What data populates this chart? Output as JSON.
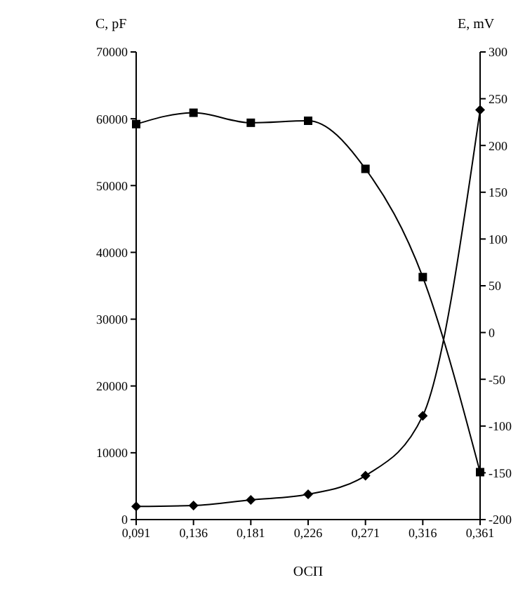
{
  "chart_data": {
    "type": "line",
    "xlabel": "ОСП",
    "ylabel": "C, pF",
    "y2label": "E, mV",
    "categories": [
      "0,091",
      "0,136",
      "0,181",
      "0,226",
      "0,271",
      "0,316",
      "0,361"
    ],
    "series": [
      {
        "color": "#000000",
        "marker": "square",
        "values": [
          59200,
          60900,
          59400,
          59700,
          52500,
          36300,
          7100
        ]
      },
      {
        "color": "#000000",
        "marker": "diamond",
        "axis": "y2",
        "values": [
          -186,
          -185,
          -179,
          -173,
          -153,
          -89,
          238
        ]
      }
    ],
    "ylim": [
      0,
      70000
    ],
    "yticks": [
      0,
      10000,
      20000,
      30000,
      40000,
      50000,
      60000,
      70000
    ],
    "y2lim": [
      -200,
      300
    ],
    "y2ticks": [
      -200,
      -150,
      -100,
      -50,
      0,
      50,
      100,
      150,
      200,
      250,
      300
    ],
    "grid": false,
    "legend": false,
    "line_style": "solid"
  }
}
